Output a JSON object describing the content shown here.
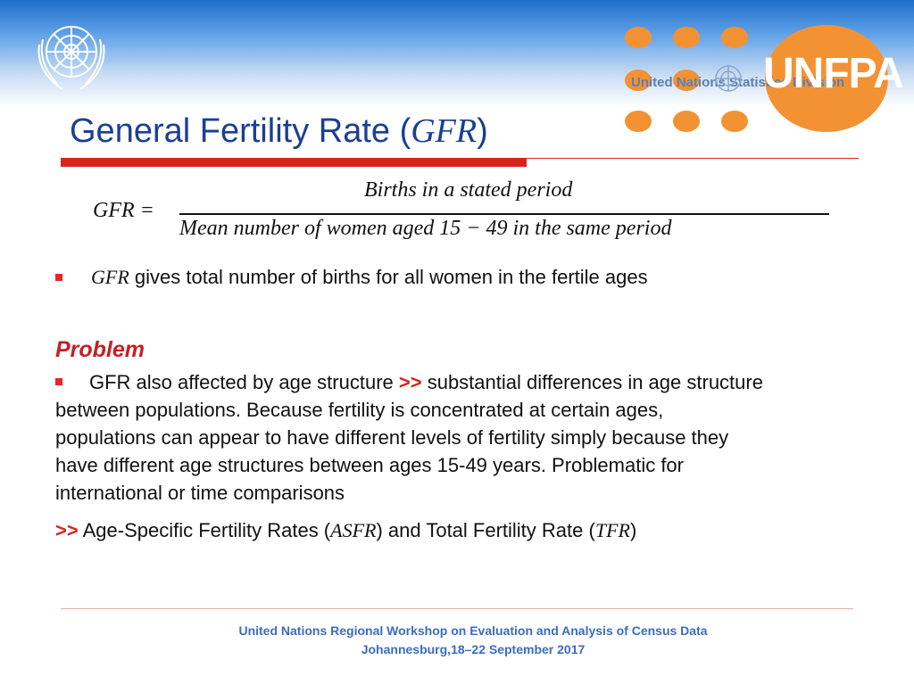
{
  "header": {
    "logo_left": "un-emblem",
    "logo_right_text": "UNFPA",
    "logo_right_subtext": "United Nations Statistics Division",
    "accent_color": "#f39233",
    "band_color": "#1f6fc9"
  },
  "title": {
    "prefix": "General Fertility Rate (",
    "math": "GFR",
    "suffix": ")"
  },
  "formula": {
    "lhs": "GFR =",
    "numerator": "Births in a stated period",
    "denominator": "Mean number of  women aged 15 − 49 in the same period"
  },
  "bullet1": {
    "math": "GFR",
    "text": " gives total number of births for all women in the fertile ages"
  },
  "problem": {
    "heading": "Problem",
    "line1_prefix": "GFR also affected by age structure ",
    "line1_arrow": ">>",
    "line1_suffix": " substantial differences in age structure",
    "line2": "between populations. Because fertility is concentrated at certain ages,",
    "line3": "populations can appear to have different levels of fertility simply because they",
    "line4": "have different age structures between ages 15-49 years. Problematic for",
    "line5": "international or time comparisons"
  },
  "conclusion": {
    "arrow": ">>",
    "text1": " Age-Specific Fertility Rates (",
    "math1": "ASFR",
    "text2": ") and Total Fertility Rate (",
    "math2": "TFR",
    "text3": ")"
  },
  "footer": {
    "line1": "United Nations Regional Workshop on Evaluation and Analysis of Census Data",
    "line2": "Johannesburg,18–22 September 2017"
  }
}
